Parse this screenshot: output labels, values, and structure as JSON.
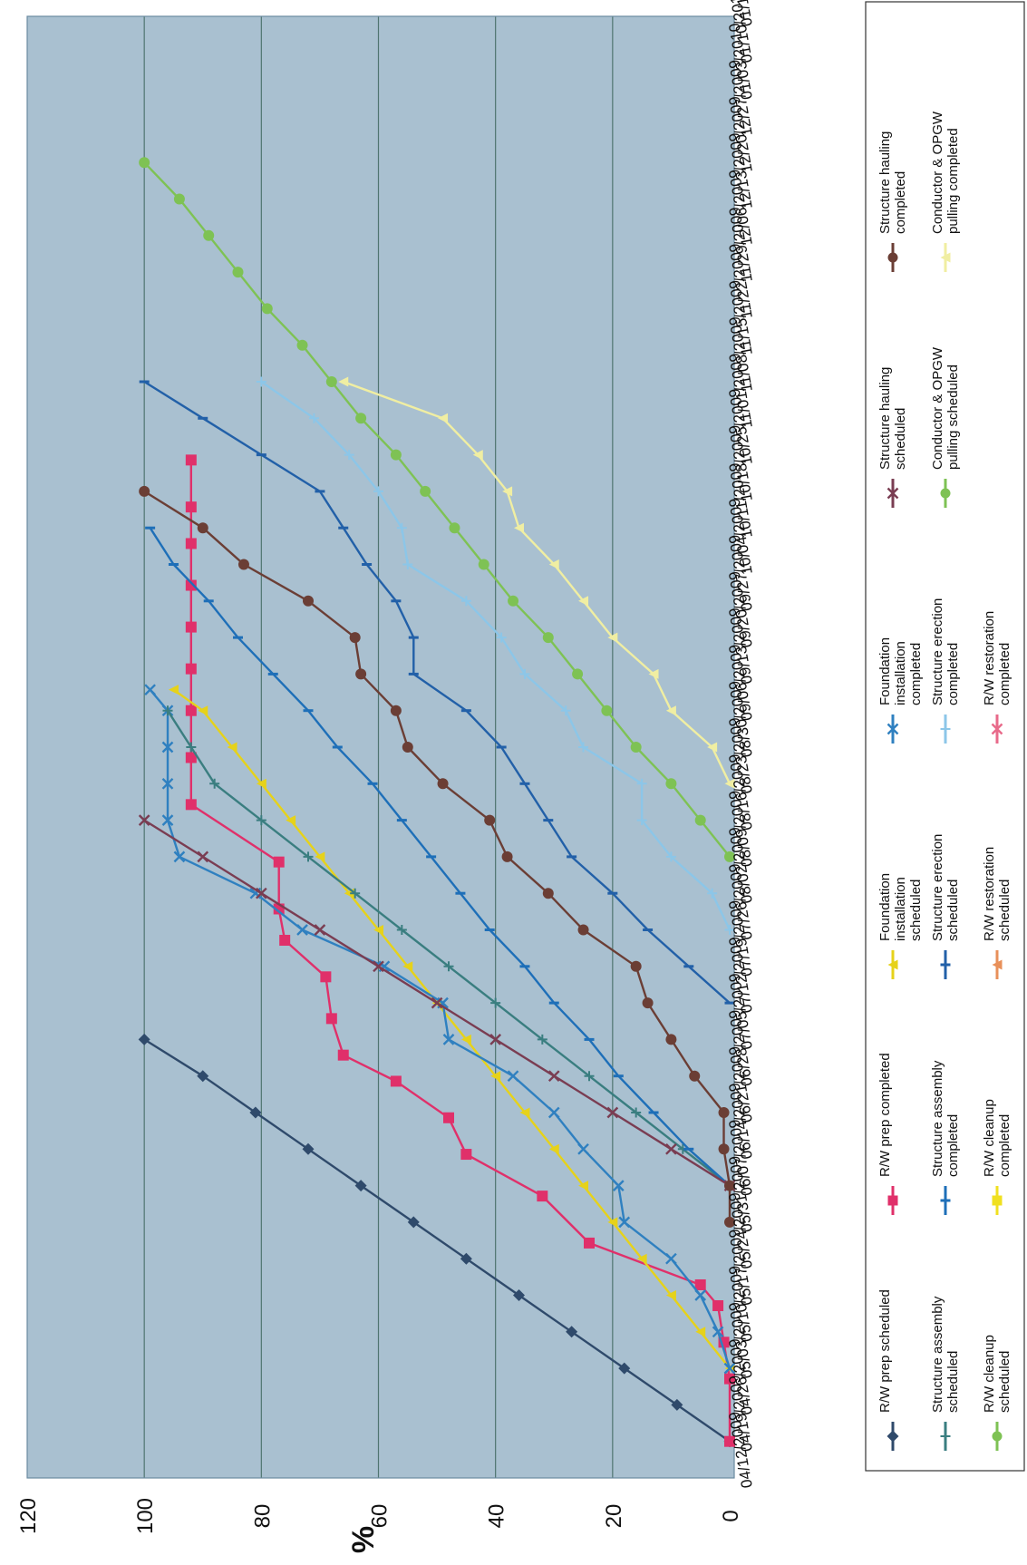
{
  "chart_data": {
    "type": "line",
    "ylabel": "%",
    "ylim": [
      0,
      120
    ],
    "yticks": [
      0,
      20,
      40,
      60,
      80,
      100,
      120
    ],
    "grid": true,
    "legend_position": "bottom",
    "x_tick_labels": [
      "04/12/2009",
      "04/19/2009",
      "04/26/2009",
      "05/03/2009",
      "05/10/2009",
      "05/17/2009",
      "05/24/2009",
      "05/31/2009",
      "06/07/2009",
      "06/14/2009",
      "06/21/2009",
      "06/28/2009",
      "07/05/2009",
      "07/12/2009",
      "07/19/2009",
      "07/26/2009",
      "08/02/2009",
      "08/09/2009",
      "08/16/2009",
      "08/23/2009",
      "08/30/2009",
      "09/06/2009",
      "09/13/2009",
      "09/20/2009",
      "09/27/2009",
      "10/04/2009",
      "10/11/2009",
      "10/18/2009",
      "10/25/2009",
      "11/01/2009",
      "11/08/2009",
      "11/15/2009",
      "11/22/2009",
      "11/29/2009",
      "12/06/2009",
      "12/13/2009",
      "12/20/2009",
      "12/27/2009",
      "01/03/2010",
      "01/10/2010",
      "01/17/2010"
    ],
    "series": [
      {
        "name": "R/W prep scheduled",
        "color": "#2f4a6b",
        "marker": "diamond",
        "x": [
          "04/19/2009",
          "04/26/2009",
          "05/03/2009",
          "05/10/2009",
          "05/17/2009",
          "05/24/2009",
          "05/31/2009",
          "06/07/2009",
          "06/14/2009",
          "06/21/2009",
          "06/28/2009",
          "07/05/2009"
        ],
        "values": [
          0,
          9,
          18,
          27,
          36,
          45,
          54,
          63,
          72,
          81,
          90,
          100
        ]
      },
      {
        "name": "R/W prep completed",
        "color": "#e0306a",
        "marker": "square",
        "x": [
          "04/19/2009",
          "05/01/2009",
          "05/08/2009",
          "05/15/2009",
          "05/19/2009",
          "05/27/2009",
          "06/05/2009",
          "06/13/2009",
          "06/20/2009",
          "06/27/2009",
          "07/02/2009",
          "07/09/2009",
          "07/17/2009",
          "07/24/2009",
          "07/30/2009",
          "08/08/2009",
          "08/19/2009",
          "08/28/2009",
          "09/06/2009",
          "09/14/2009",
          "09/22/2009",
          "09/30/2009",
          "10/08/2009",
          "10/15/2009",
          "10/24/2009"
        ],
        "values": [
          0,
          0,
          1,
          2,
          5,
          24,
          32,
          45,
          48,
          57,
          66,
          68,
          69,
          76,
          77,
          77,
          92,
          92,
          92,
          92,
          92,
          92,
          92,
          92,
          92
        ]
      },
      {
        "name": "Foundation installation scheduled",
        "color": "#e6d21a",
        "marker": "triangle",
        "x": [
          "05/03/2009",
          "05/10/2009",
          "05/17/2009",
          "05/24/2009",
          "05/31/2009",
          "06/07/2009",
          "06/14/2009",
          "06/21/2009",
          "06/28/2009",
          "07/05/2009",
          "07/12/2009",
          "07/19/2009",
          "07/26/2009",
          "08/02/2009",
          "08/09/2009",
          "08/16/2009",
          "08/23/2009",
          "08/30/2009",
          "09/06/2009",
          "09/10/2009"
        ],
        "values": [
          0,
          5,
          10,
          15,
          20,
          25,
          30,
          35,
          40,
          45,
          50,
          55,
          60,
          65,
          70,
          75,
          80,
          85,
          90,
          95
        ]
      },
      {
        "name": "Foundation installation completed",
        "color": "#2f80c0",
        "marker": "x",
        "x": [
          "05/03/2009",
          "05/10/2009",
          "05/17/2009",
          "05/24/2009",
          "05/31/2009",
          "06/07/2009",
          "06/14/2009",
          "06/21/2009",
          "06/28/2009",
          "07/05/2009",
          "07/12/2009",
          "07/19/2009",
          "07/26/2009",
          "08/02/2009",
          "08/09/2009",
          "08/16/2009",
          "08/23/2009",
          "08/30/2009",
          "09/06/2009",
          "09/10/2009"
        ],
        "values": [
          0,
          2,
          5,
          10,
          18,
          19,
          25,
          30,
          37,
          48,
          49,
          59,
          73,
          81,
          94,
          96,
          96,
          96,
          96,
          99
        ]
      },
      {
        "name": "Structure assembly scheduled",
        "color": "#3a7e80",
        "marker": "plus",
        "x": [
          "06/07/2009",
          "06/14/2009",
          "06/21/2009",
          "06/28/2009",
          "07/05/2009",
          "07/12/2009",
          "07/19/2009",
          "07/26/2009",
          "08/02/2009",
          "08/09/2009",
          "08/16/2009",
          "08/23/2009",
          "08/30/2009",
          "09/06/2009"
        ],
        "values": [
          0,
          8,
          16,
          24,
          32,
          40,
          48,
          56,
          64,
          72,
          80,
          88,
          92,
          96
        ]
      },
      {
        "name": "Structure assembly completed",
        "color": "#1e6fb8",
        "marker": "dash",
        "x": [
          "06/07/2009",
          "06/14/2009",
          "06/21/2009",
          "06/28/2009",
          "07/05/2009",
          "07/12/2009",
          "07/19/2009",
          "07/26/2009",
          "08/02/2009",
          "08/09/2009",
          "08/16/2009",
          "08/23/2009",
          "08/30/2009",
          "09/06/2009",
          "09/13/2009",
          "09/20/2009",
          "09/27/2009",
          "10/04/2009",
          "10/11/2009"
        ],
        "values": [
          0,
          7,
          13,
          19,
          24,
          30,
          35,
          41,
          46,
          51,
          56,
          61,
          67,
          72,
          78,
          84,
          89,
          95,
          99
        ]
      },
      {
        "name": "Structure erection scheduled",
        "color": "#2260a8",
        "marker": "dash",
        "x": [
          "07/12/2009",
          "07/19/2009",
          "07/26/2009",
          "08/02/2009",
          "08/09/2009",
          "08/16/2009",
          "08/23/2009",
          "08/30/2009",
          "09/06/2009",
          "09/13/2009",
          "09/20/2009",
          "09/27/2009",
          "10/04/2009",
          "10/11/2009",
          "10/18/2009",
          "10/25/2009",
          "11/01/2009",
          "11/08/2009"
        ],
        "values": [
          0,
          7,
          14,
          20,
          27,
          31,
          35,
          39,
          45,
          54,
          54,
          57,
          62,
          66,
          70,
          80,
          90,
          100
        ]
      },
      {
        "name": "Structure erection completed",
        "color": "#8cc6e8",
        "marker": "plus",
        "x": [
          "07/26/2009",
          "08/02/2009",
          "08/09/2009",
          "08/16/2009",
          "08/23/2009",
          "08/30/2009",
          "09/06/2009",
          "09/13/2009",
          "09/20/2009",
          "09/27/2009",
          "10/04/2009",
          "10/11/2009",
          "10/18/2009",
          "10/25/2009",
          "11/01/2009",
          "11/08/2009"
        ],
        "values": [
          0,
          3,
          10,
          15,
          15,
          25,
          28,
          35,
          39,
          45,
          55,
          56,
          60,
          65,
          71,
          80
        ]
      },
      {
        "name": "Structure hauling scheduled",
        "color": "#7a3d52",
        "marker": "x",
        "x": [
          "06/07/2009",
          "06/14/2009",
          "06/21/2009",
          "06/28/2009",
          "07/05/2009",
          "07/12/2009",
          "07/19/2009",
          "07/26/2009",
          "08/02/2009",
          "08/09/2009",
          "08/16/2009"
        ],
        "values": [
          0,
          10,
          20,
          30,
          40,
          50,
          60,
          70,
          80,
          90,
          100
        ]
      },
      {
        "name": "Structure hauling completed",
        "color": "#6b3e35",
        "marker": "circle",
        "x": [
          "05/31/2009",
          "06/07/2009",
          "06/14/2009",
          "06/21/2009",
          "06/28/2009",
          "07/05/2009",
          "07/12/2009",
          "07/19/2009",
          "07/26/2009",
          "08/02/2009",
          "08/09/2009",
          "08/16/2009",
          "08/23/2009",
          "08/30/2009",
          "09/06/2009",
          "09/13/2009",
          "09/20/2009",
          "09/27/2009",
          "10/04/2009",
          "10/11/2009",
          "10/18/2009"
        ],
        "values": [
          0,
          0,
          1,
          1,
          6,
          10,
          14,
          16,
          25,
          31,
          38,
          41,
          49,
          55,
          57,
          63,
          64,
          72,
          83,
          90,
          100
        ]
      },
      {
        "name": "Conductor & OPGW pulling scheduled",
        "color": "#7ec254",
        "marker": "circle",
        "x": [
          "08/09/2009",
          "08/16/2009",
          "08/23/2009",
          "08/30/2009",
          "09/06/2009",
          "09/13/2009",
          "09/20/2009",
          "09/27/2009",
          "10/04/2009",
          "10/11/2009",
          "10/18/2009",
          "10/25/2009",
          "11/01/2009",
          "11/08/2009",
          "11/15/2009",
          "11/22/2009",
          "11/29/2009",
          "12/06/2009",
          "12/13/2009",
          "12/20/2009"
        ],
        "values": [
          0,
          5,
          10,
          16,
          21,
          26,
          31,
          37,
          42,
          47,
          52,
          57,
          63,
          68,
          73,
          79,
          84,
          89,
          94,
          100
        ]
      },
      {
        "name": "Conductor & OPGW pulling completed",
        "color": "#f0eea2",
        "marker": "triangle",
        "x": [
          "08/23/2009",
          "08/30/2009",
          "09/06/2009",
          "09/13/2009",
          "09/20/2009",
          "09/27/2009",
          "10/04/2009",
          "10/11/2009",
          "10/18/2009",
          "10/25/2009",
          "11/01/2009",
          "11/08/2009"
        ],
        "values": [
          0,
          3,
          10,
          13,
          20,
          25,
          30,
          36,
          38,
          43,
          49,
          66
        ]
      }
    ],
    "legend_extra": [
      {
        "name": "R/W cleanup scheduled",
        "color": "#7ec254",
        "marker": "circle"
      },
      {
        "name": "R/W cleanup completed",
        "color": "#f0e020",
        "marker": "square"
      },
      {
        "name": "R/W restoration scheduled",
        "color": "#e8905a",
        "marker": "triangle"
      },
      {
        "name": "R/W restoration completed",
        "color": "#e86a8a",
        "marker": "x"
      }
    ],
    "legend_order": [
      "R/W prep scheduled",
      "R/W prep completed",
      "Foundation installation scheduled",
      "Foundation installation completed",
      "Structure hauling scheduled",
      "Structure hauling completed",
      "Structure assembly scheduled",
      "Structure assembly completed",
      "Structure erection scheduled",
      "Structure erection completed",
      "Conductor & OPGW pulling scheduled",
      "Conductor & OPGW pulling completed",
      "R/W cleanup scheduled",
      "R/W cleanup completed",
      "R/W restoration scheduled",
      "R/W restoration completed"
    ]
  }
}
